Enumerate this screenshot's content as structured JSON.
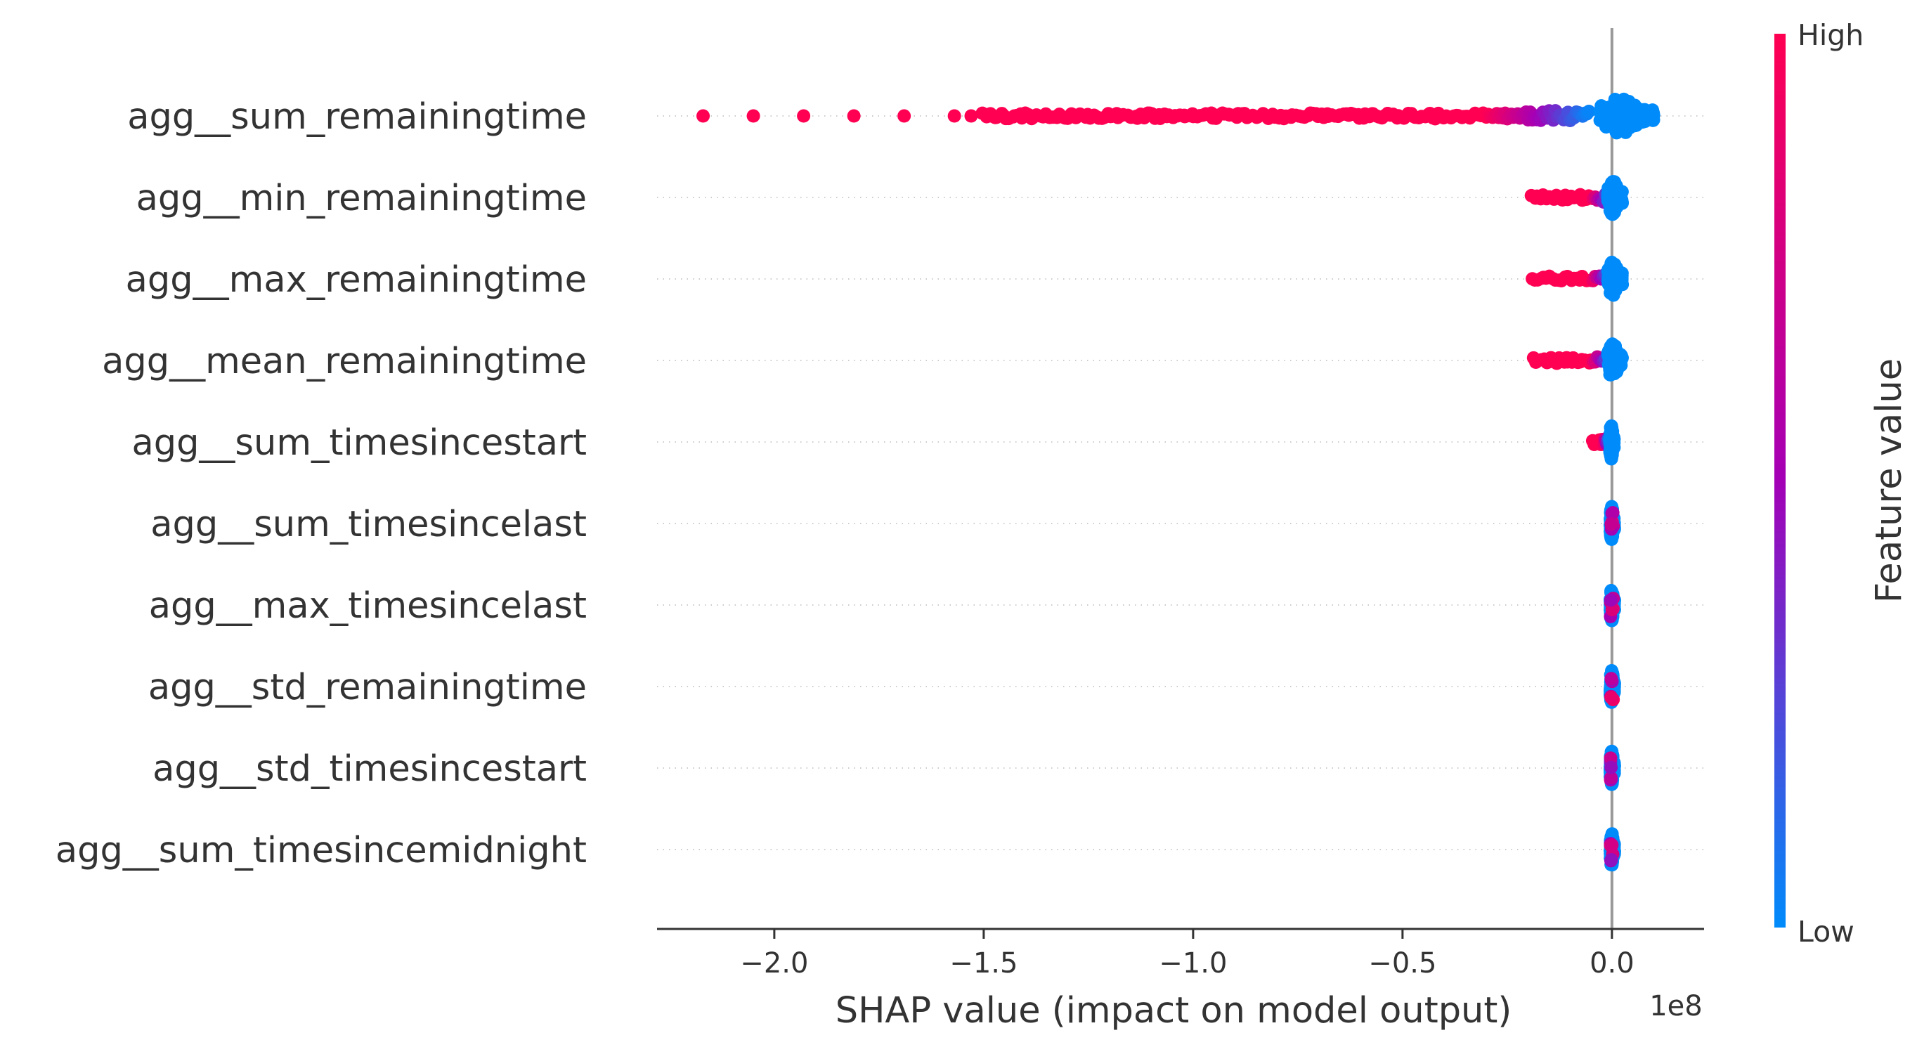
{
  "chart_data": {
    "type": "scatter",
    "subtype": "shap-beeswarm-summary",
    "xlabel": "SHAP value (impact on model output)",
    "x_offset_label": "1e8",
    "x_ticks": [
      -2.0,
      -1.5,
      -1.0,
      -0.5,
      0.0
    ],
    "x_tick_labels": [
      "−2.0",
      "−1.5",
      "−1.0",
      "−0.5",
      "0.0"
    ],
    "xlim": [
      -2.28,
      0.22
    ],
    "x_unit_multiplier": 100000000,
    "grid": "dotted horizontal row lines",
    "zero_line": true,
    "features": [
      {
        "name": "agg__sum_remainingtime",
        "outliers_high": [
          -2.17,
          -2.05,
          -1.93,
          -1.81,
          -1.69,
          -1.57,
          -1.53
        ],
        "high_range": [
          -1.5,
          -0.3
        ],
        "mixed_range": [
          -0.3,
          -0.05
        ],
        "low_range": [
          -0.03,
          0.1
        ],
        "max_spread": 0.5
      },
      {
        "name": "agg__min_remainingtime",
        "high_range": [
          -0.19,
          -0.05
        ],
        "mixed_range": [
          -0.05,
          0.0
        ],
        "low_range": [
          -0.01,
          0.025
        ],
        "max_spread": 0.45
      },
      {
        "name": "agg__max_remainingtime",
        "high_range": [
          -0.19,
          -0.05
        ],
        "mixed_range": [
          -0.05,
          0.0
        ],
        "low_range": [
          -0.01,
          0.025
        ],
        "max_spread": 0.45
      },
      {
        "name": "agg__mean_remainingtime",
        "high_range": [
          -0.19,
          -0.05
        ],
        "mixed_range": [
          -0.05,
          0.0
        ],
        "low_range": [
          -0.01,
          0.025
        ],
        "max_spread": 0.45
      },
      {
        "name": "agg__sum_timesincestart",
        "high_range": [
          -0.045,
          -0.02
        ],
        "mixed_range": [
          -0.02,
          -0.005
        ],
        "low_range": [
          -0.005,
          0.005
        ],
        "max_spread": 0.45
      },
      {
        "name": "agg__sum_timesincelast",
        "high_range": [
          0.0,
          0.0
        ],
        "mixed_range": [
          -0.002,
          0.002
        ],
        "low_range": [
          -0.004,
          0.004
        ],
        "max_spread": 0.45
      },
      {
        "name": "agg__max_timesincelast",
        "high_range": [
          0.0,
          0.0
        ],
        "mixed_range": [
          -0.002,
          0.002
        ],
        "low_range": [
          -0.004,
          0.004
        ],
        "max_spread": 0.45
      },
      {
        "name": "agg__std_remainingtime",
        "high_range": [
          0.0,
          0.0
        ],
        "mixed_range": [
          -0.002,
          0.002
        ],
        "low_range": [
          -0.004,
          0.004
        ],
        "max_spread": 0.45
      },
      {
        "name": "agg__std_timesincestart",
        "high_range": [
          0.0,
          0.0
        ],
        "mixed_range": [
          -0.002,
          0.002
        ],
        "low_range": [
          -0.004,
          0.004
        ],
        "max_spread": 0.45
      },
      {
        "name": "agg__sum_timesincemidnight",
        "high_range": [
          -0.002,
          0.002
        ],
        "mixed_range": [
          -0.003,
          0.003
        ],
        "low_range": [
          -0.004,
          0.004
        ],
        "max_spread": 0.45
      }
    ],
    "colorbar": {
      "title": "Feature value",
      "high_label": "High",
      "low_label": "Low",
      "low_color": "#008bfb",
      "mid_color": "#a400b6",
      "high_color": "#ff0052"
    }
  }
}
